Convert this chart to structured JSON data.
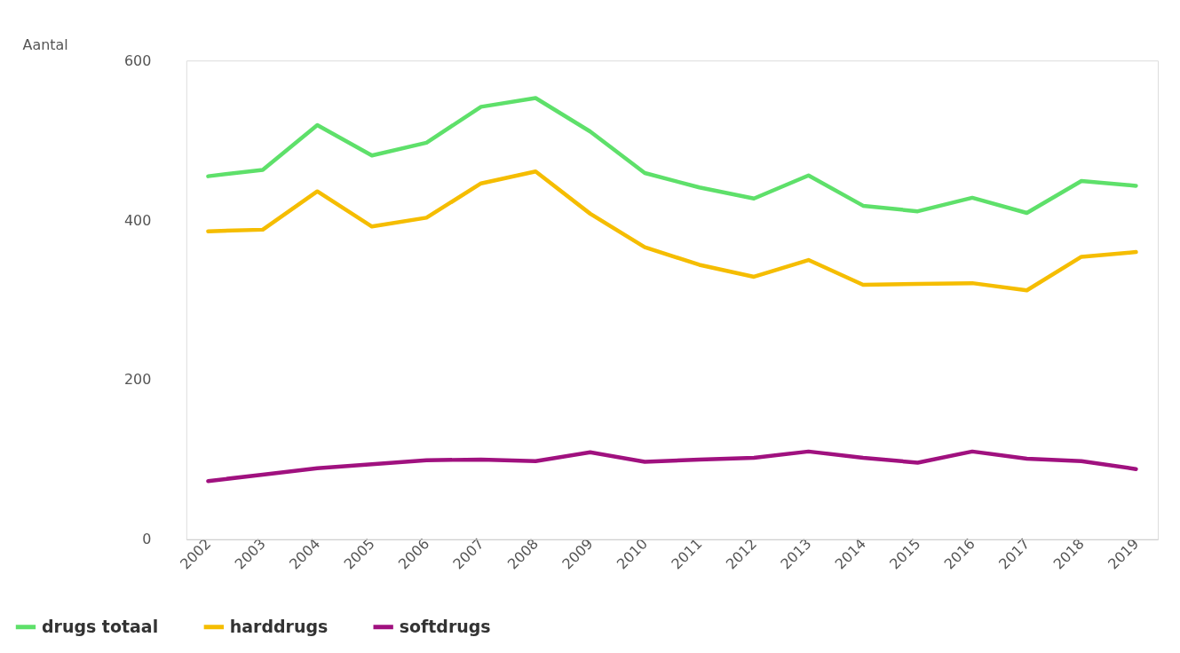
{
  "chart_data": {
    "type": "line",
    "ylabel": "Aantal",
    "categories": [
      "2002",
      "2003",
      "2004",
      "2005",
      "2006",
      "2007",
      "2008",
      "2009",
      "2010",
      "2011",
      "2012",
      "2013",
      "2014",
      "2015",
      "2016",
      "2017",
      "2018",
      "2019"
    ],
    "series": [
      {
        "name": "drugs totaal",
        "color": "#5ee06a",
        "values": [
          455,
          463,
          519,
          481,
          497,
          542,
          553,
          511,
          459,
          441,
          427,
          456,
          418,
          411,
          428,
          409,
          449,
          443
        ]
      },
      {
        "name": "harddrugs",
        "color": "#f5bd00",
        "values": [
          386,
          388,
          436,
          392,
          403,
          446,
          461,
          408,
          366,
          344,
          329,
          350,
          319,
          320,
          321,
          312,
          354,
          360
        ]
      },
      {
        "name": "softdrugs",
        "color": "#a0117f",
        "values": [
          73,
          81,
          89,
          94,
          99,
          100,
          98,
          109,
          97,
          100,
          102,
          110,
          102,
          96,
          110,
          101,
          98,
          88
        ]
      }
    ],
    "ylim": [
      0,
      600
    ],
    "yticks": [
      0,
      200,
      400,
      600
    ],
    "grid": false,
    "legend": "bottom left",
    "marker": "none",
    "line_style": "solid"
  }
}
